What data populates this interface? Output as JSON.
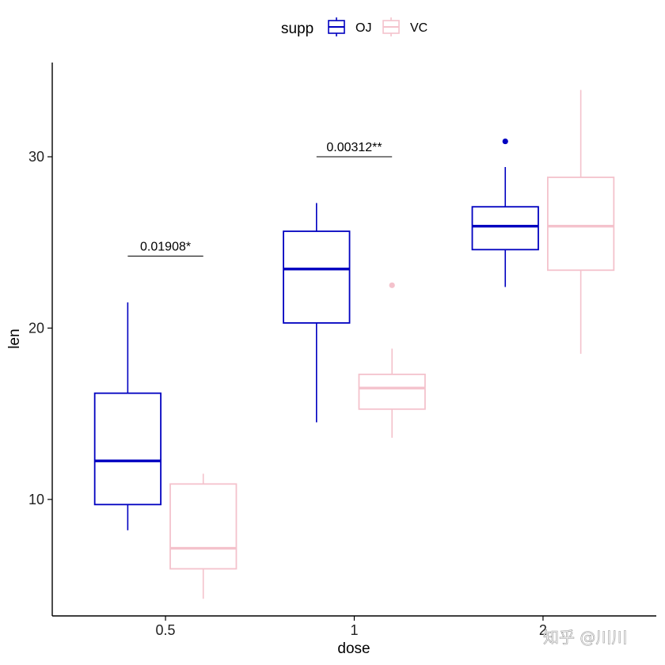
{
  "chart_data": {
    "type": "box",
    "legend": {
      "title": "supp",
      "position": "top"
    },
    "xlabel": "dose",
    "ylabel": "len",
    "categories": [
      "0.5",
      "1",
      "2"
    ],
    "ylim": [
      3.2,
      35.5
    ],
    "yticks": [
      10,
      20,
      30
    ],
    "series": [
      {
        "name": "OJ",
        "color": "#0000c0",
        "boxes": [
          {
            "category": "0.5",
            "whisker_low": 8.2,
            "q1": 9.7,
            "median": 12.25,
            "q3": 16.2,
            "whisker_high": 21.5,
            "outliers": []
          },
          {
            "category": "1",
            "whisker_low": 14.5,
            "q1": 20.3,
            "median": 23.45,
            "q3": 25.65,
            "whisker_high": 27.3,
            "outliers": []
          },
          {
            "category": "2",
            "whisker_low": 22.4,
            "q1": 24.58,
            "median": 25.95,
            "q3": 27.08,
            "whisker_high": 29.4,
            "outliers": [
              30.9
            ]
          }
        ]
      },
      {
        "name": "VC",
        "color": "#f4c2cc",
        "boxes": [
          {
            "category": "0.5",
            "whisker_low": 4.2,
            "q1": 5.95,
            "median": 7.15,
            "q3": 10.9,
            "whisker_high": 11.5,
            "outliers": []
          },
          {
            "category": "1",
            "whisker_low": 13.6,
            "q1": 15.27,
            "median": 16.5,
            "q3": 17.3,
            "whisker_high": 18.8,
            "outliers": [
              22.5
            ]
          },
          {
            "category": "2",
            "whisker_low": 18.5,
            "q1": 23.38,
            "median": 25.95,
            "q3": 28.8,
            "whisker_high": 33.9,
            "outliers": []
          }
        ]
      }
    ],
    "annotations": [
      {
        "category": "0.5",
        "label": "0.01908*",
        "y": 24.2
      },
      {
        "category": "1",
        "label": "0.00312**",
        "y": 30.0
      }
    ]
  },
  "watermark": "知乎 @川川"
}
